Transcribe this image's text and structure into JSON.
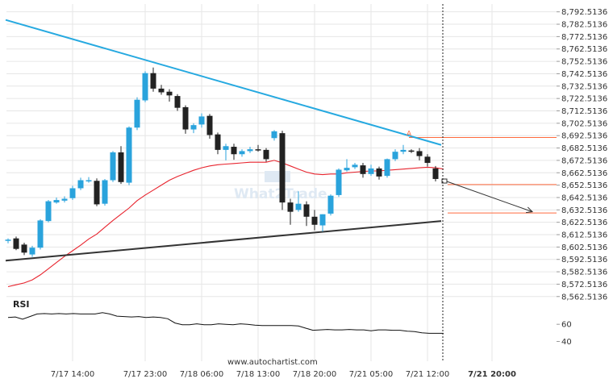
{
  "chart_data": {
    "type": "candlestick",
    "price_axis": {
      "ticks": [
        "8,792.5136",
        "8,782.5136",
        "8,772.5136",
        "8,762.5136",
        "8,752.5136",
        "8,742.5136",
        "8,732.5136",
        "8,722.5136",
        "8,712.5136",
        "8,702.5136",
        "8,692.5136",
        "8,682.5136",
        "8,672.5136",
        "8,662.5136",
        "8,652.5136",
        "8,642.5136",
        "8,632.5136",
        "8,622.5136",
        "8,612.5136",
        "8,602.5136",
        "8,592.5136",
        "8,582.5136",
        "8,572.5136",
        "8,562.5136"
      ],
      "top_value": 8797.5136,
      "bottom_value": 8556.5136
    },
    "time_axis": {
      "ticks": [
        {
          "label": "7/17 14:00",
          "bar": 8,
          "bold": false
        },
        {
          "label": "7/17 23:00",
          "bar": 17,
          "bold": false
        },
        {
          "label": "7/18 06:00",
          "bar": 24,
          "bold": false
        },
        {
          "label": "7/18 13:00",
          "bar": 31,
          "bold": false
        },
        {
          "label": "7/18 20:00",
          "bar": 38,
          "bold": false
        },
        {
          "label": "7/21 05:00",
          "bar": 45,
          "bold": false
        },
        {
          "label": "7/21 12:00",
          "bar": 52,
          "bold": false
        },
        {
          "label": "7/21 20:00",
          "bar": 60,
          "bold": true
        }
      ]
    },
    "candles": [
      {
        "o": 8607.5,
        "h": 8609.5,
        "l": 8605.5,
        "c": 8608.5
      },
      {
        "o": 8609.5,
        "h": 8611.0,
        "l": 8600.0,
        "c": 8601.0
      },
      {
        "o": 8604.5,
        "h": 8606.0,
        "l": 8596.0,
        "c": 8598.0
      },
      {
        "o": 8596.5,
        "h": 8603.5,
        "l": 8594.5,
        "c": 8602.0
      },
      {
        "o": 8602.0,
        "h": 8625.0,
        "l": 8600.5,
        "c": 8624.0
      },
      {
        "o": 8623.5,
        "h": 8640.5,
        "l": 8622.5,
        "c": 8639.5
      },
      {
        "o": 8638.5,
        "h": 8642.5,
        "l": 8637.5,
        "c": 8640.5
      },
      {
        "o": 8640.0,
        "h": 8643.5,
        "l": 8638.5,
        "c": 8641.5
      },
      {
        "o": 8642.0,
        "h": 8652.0,
        "l": 8640.5,
        "c": 8650.0
      },
      {
        "o": 8650.0,
        "h": 8658.5,
        "l": 8648.5,
        "c": 8656.5
      },
      {
        "o": 8656.0,
        "h": 8659.0,
        "l": 8654.5,
        "c": 8656.5
      },
      {
        "o": 8656.0,
        "h": 8658.0,
        "l": 8635.5,
        "c": 8637.0
      },
      {
        "o": 8637.5,
        "h": 8657.5,
        "l": 8636.0,
        "c": 8656.5
      },
      {
        "o": 8656.5,
        "h": 8680.0,
        "l": 8655.0,
        "c": 8679.0
      },
      {
        "o": 8679.0,
        "h": 8684.0,
        "l": 8653.5,
        "c": 8655.0
      },
      {
        "o": 8654.5,
        "h": 8700.0,
        "l": 8652.5,
        "c": 8699.0
      },
      {
        "o": 8699.0,
        "h": 8723.5,
        "l": 8697.0,
        "c": 8721.5
      },
      {
        "o": 8721.0,
        "h": 8744.5,
        "l": 8719.5,
        "c": 8743.0
      },
      {
        "o": 8743.0,
        "h": 8747.5,
        "l": 8728.0,
        "c": 8730.5
      },
      {
        "o": 8730.5,
        "h": 8733.5,
        "l": 8725.5,
        "c": 8727.5
      },
      {
        "o": 8728.0,
        "h": 8730.0,
        "l": 8720.0,
        "c": 8725.0
      },
      {
        "o": 8724.5,
        "h": 8726.0,
        "l": 8712.5,
        "c": 8715.0
      },
      {
        "o": 8715.5,
        "h": 8717.0,
        "l": 8694.0,
        "c": 8697.5
      },
      {
        "o": 8697.5,
        "h": 8702.5,
        "l": 8694.5,
        "c": 8701.0
      },
      {
        "o": 8701.5,
        "h": 8710.5,
        "l": 8699.0,
        "c": 8708.0
      },
      {
        "o": 8708.5,
        "h": 8710.0,
        "l": 8690.0,
        "c": 8693.0
      },
      {
        "o": 8693.5,
        "h": 8695.0,
        "l": 8677.5,
        "c": 8681.0
      },
      {
        "o": 8681.0,
        "h": 8686.0,
        "l": 8672.5,
        "c": 8684.0
      },
      {
        "o": 8683.5,
        "h": 8686.0,
        "l": 8673.0,
        "c": 8677.5
      },
      {
        "o": 8677.5,
        "h": 8681.5,
        "l": 8675.5,
        "c": 8680.0
      },
      {
        "o": 8680.0,
        "h": 8683.5,
        "l": 8678.5,
        "c": 8681.5
      },
      {
        "o": 8681.5,
        "h": 8685.0,
        "l": 8679.5,
        "c": 8680.5
      },
      {
        "o": 8681.0,
        "h": 8682.5,
        "l": 8671.5,
        "c": 8673.5
      },
      {
        "o": 8690.5,
        "h": 8697.0,
        "l": 8688.5,
        "c": 8696.0
      },
      {
        "o": 8694.5,
        "h": 8696.5,
        "l": 8632.5,
        "c": 8638.5
      },
      {
        "o": 8638.5,
        "h": 8641.5,
        "l": 8620.5,
        "c": 8631.0
      },
      {
        "o": 8632.5,
        "h": 8647.5,
        "l": 8631.0,
        "c": 8637.5
      },
      {
        "o": 8637.0,
        "h": 8639.5,
        "l": 8619.5,
        "c": 8627.0
      },
      {
        "o": 8627.0,
        "h": 8632.5,
        "l": 8616.0,
        "c": 8620.5
      },
      {
        "o": 8620.0,
        "h": 8629.0,
        "l": 8615.0,
        "c": 8629.0
      },
      {
        "o": 8629.5,
        "h": 8645.0,
        "l": 8628.0,
        "c": 8644.0
      },
      {
        "o": 8644.5,
        "h": 8666.0,
        "l": 8643.0,
        "c": 8665.0
      },
      {
        "o": 8664.5,
        "h": 8673.5,
        "l": 8663.5,
        "c": 8666.5
      },
      {
        "o": 8667.0,
        "h": 8670.5,
        "l": 8665.5,
        "c": 8669.0
      },
      {
        "o": 8668.5,
        "h": 8670.5,
        "l": 8658.5,
        "c": 8661.5
      },
      {
        "o": 8661.5,
        "h": 8669.0,
        "l": 8660.0,
        "c": 8666.0
      },
      {
        "o": 8666.0,
        "h": 8667.5,
        "l": 8657.0,
        "c": 8659.5
      },
      {
        "o": 8660.0,
        "h": 8674.0,
        "l": 8658.5,
        "c": 8673.5
      },
      {
        "o": 8673.5,
        "h": 8681.5,
        "l": 8672.0,
        "c": 8679.5
      },
      {
        "o": 8679.5,
        "h": 8685.0,
        "l": 8677.5,
        "c": 8681.0
      },
      {
        "o": 8680.5,
        "h": 8681.5,
        "l": 8678.5,
        "c": 8679.5
      },
      {
        "o": 8680.0,
        "h": 8682.5,
        "l": 8672.5,
        "c": 8676.0
      },
      {
        "o": 8675.5,
        "h": 8677.5,
        "l": 8667.5,
        "c": 8670.5
      },
      {
        "o": 8666.0,
        "h": 8668.0,
        "l": 8655.5,
        "c": 8657.5
      }
    ],
    "moving_average": [
      8570.5,
      8572.0,
      8573.5,
      8576.0,
      8580.0,
      8585.0,
      8590.0,
      8595.0,
      8599.5,
      8604.0,
      8609.0,
      8613.0,
      8618.5,
      8624.0,
      8629.0,
      8634.0,
      8640.0,
      8644.5,
      8648.5,
      8652.5,
      8656.5,
      8659.5,
      8662.0,
      8664.5,
      8666.5,
      8668.0,
      8669.0,
      8669.5,
      8670.0,
      8670.5,
      8671.0,
      8671.0,
      8671.0,
      8672.5,
      8670.5,
      8668.0,
      8665.5,
      8663.0,
      8661.5,
      8661.0,
      8661.5,
      8661.5,
      8662.5,
      8663.0,
      8663.5,
      8664.0,
      8664.0,
      8664.5,
      8665.0,
      8665.5,
      8666.0,
      8666.5,
      8667.0,
      8666.5,
      8665.5
    ],
    "resistance_line": {
      "from": {
        "bar": -0.3,
        "value": 8786.0
      },
      "to": {
        "bar": 53.7,
        "value": 8685.0
      }
    },
    "support_line": {
      "from": {
        "bar": -0.3,
        "value": 8591.5
      },
      "to": {
        "bar": 53.7,
        "value": 8623.5
      }
    },
    "point_a": {
      "label": "A",
      "bar": 49.7,
      "value": 8691.0
    },
    "horizontal_levels": [
      {
        "value": 8691.0,
        "start_bar": 49.7
      },
      {
        "value": 8653.0,
        "start_bar": 54.5
      },
      {
        "value": 8630.0,
        "start_bar": 54.5
      }
    ],
    "projection": {
      "from": {
        "bar": 54.1,
        "value": 8655.5
      },
      "to": {
        "bar": 65.0,
        "value": 8631.0
      }
    },
    "current_time_bar": 53.9,
    "rsi": {
      "title": "RSI",
      "ticks": [
        60,
        40
      ],
      "top_value": 78,
      "bottom_value": 32,
      "values": [
        68.0,
        68.5,
        66.0,
        69.0,
        72.0,
        72.5,
        72.0,
        72.5,
        72.0,
        72.5,
        72.0,
        72.0,
        72.0,
        73.5,
        72.0,
        69.5,
        69.0,
        68.5,
        69.0,
        68.0,
        68.5,
        68.0,
        66.5,
        61.5,
        59.5,
        59.5,
        60.5,
        59.5,
        59.5,
        60.5,
        60.0,
        59.5,
        60.5,
        60.0,
        59.0,
        58.5,
        58.5,
        58.5,
        58.5,
        58.5,
        58.0,
        55.5,
        53.0,
        53.5,
        54.0,
        53.5,
        53.5,
        54.0,
        53.5,
        53.5,
        52.5,
        53.5,
        53.5,
        53.0,
        53.0,
        52.0,
        51.5,
        50.0,
        49.5,
        49.5,
        49.5
      ]
    }
  },
  "colors": {
    "bull_candle": "#2aa3dc",
    "bear_candle": "#222222",
    "resistance": "#26a9e0",
    "support": "#333333",
    "moving_average": "#e8242e",
    "accent": "#ff6a3d",
    "grid": "#e6e6e6"
  },
  "watermark": "What2Trade",
  "footer": "www.autochartist.com"
}
